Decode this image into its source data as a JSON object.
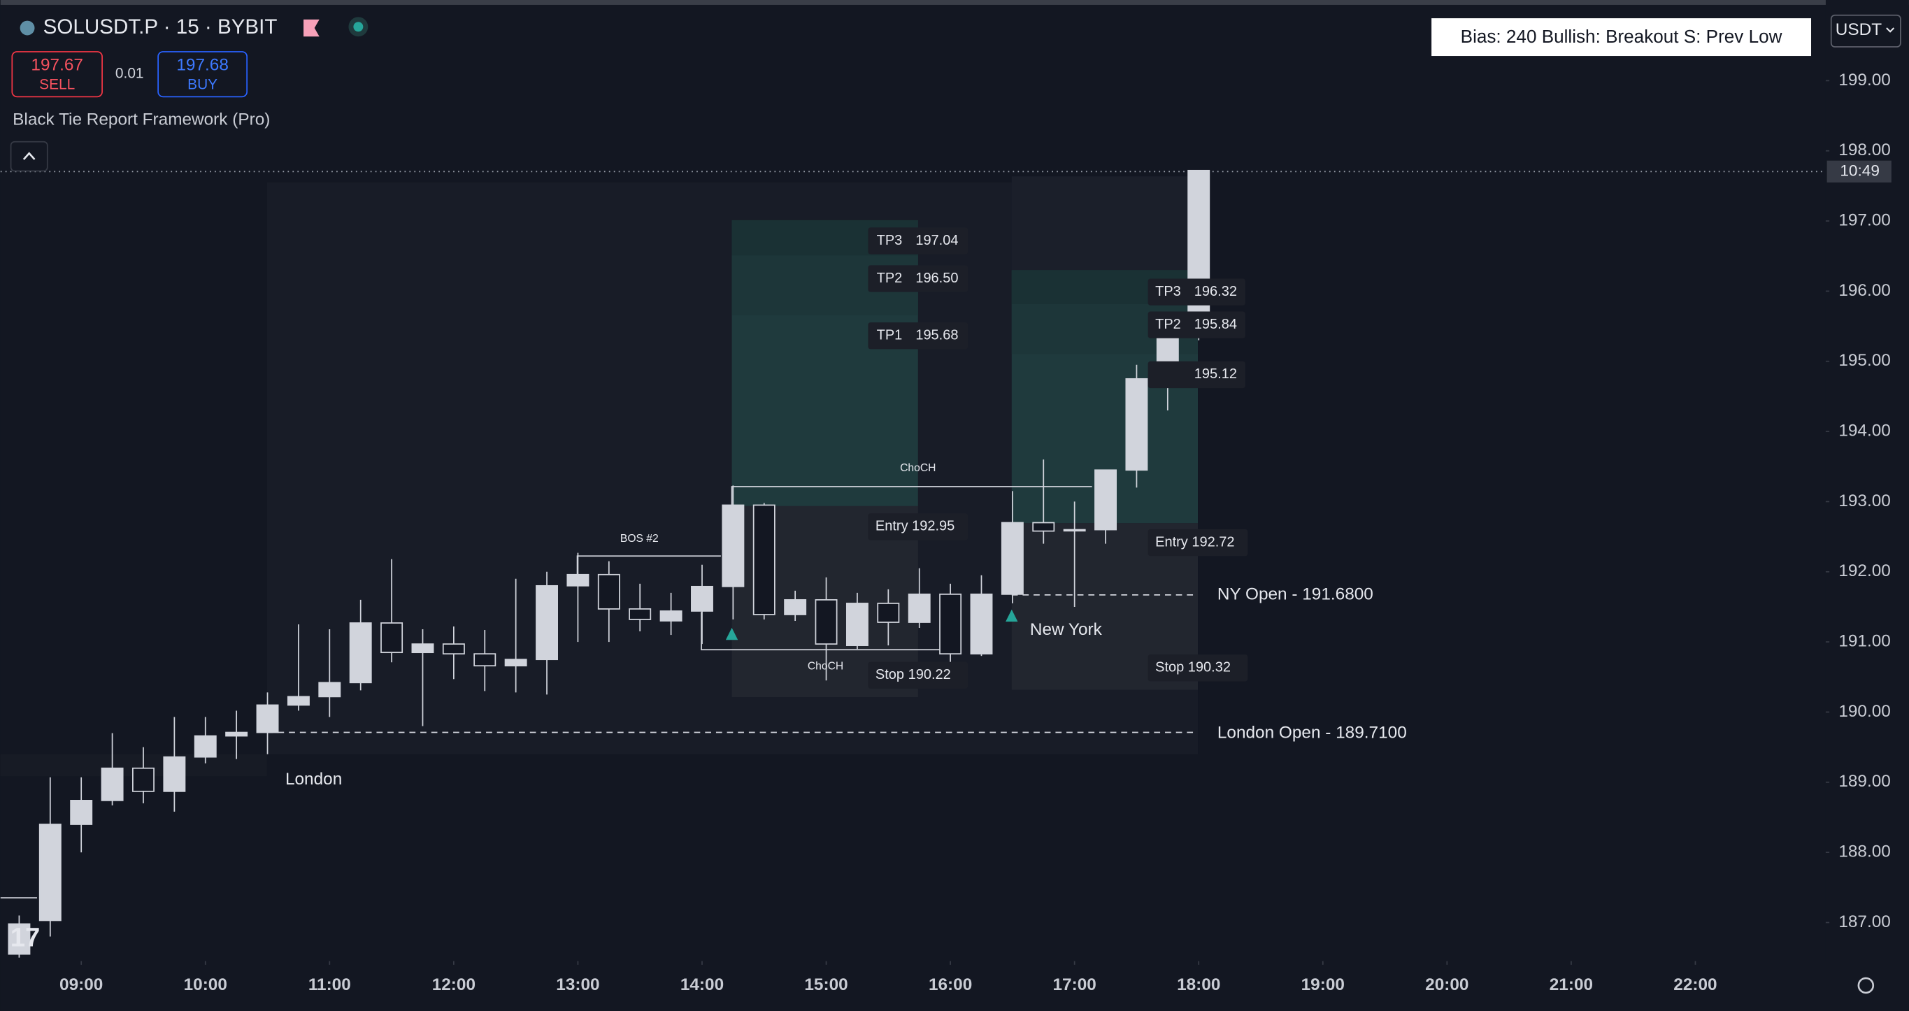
{
  "chart_data": {
    "type": "candlestick",
    "title": "SOLUSDT.P · 15 · BYBIT",
    "x": [
      8.5,
      8.75,
      9,
      9.25,
      9.5,
      9.75,
      10,
      10.25,
      10.5,
      10.75,
      11,
      11.25,
      11.5,
      11.75,
      12,
      12.25,
      12.5,
      12.75,
      13,
      13.25,
      13.5,
      13.75,
      14,
      14.25,
      14.5,
      14.75,
      15,
      15.25,
      15.5,
      15.75,
      16,
      16.25,
      16.5,
      16.75,
      17,
      17.25,
      17.5,
      17.75,
      18
    ],
    "open": [
      186.55,
      187.03,
      188.4,
      188.74,
      189.2,
      188.87,
      189.36,
      189.66,
      189.71,
      190.1,
      190.22,
      190.42,
      191.27,
      190.85,
      190.97,
      190.83,
      190.66,
      190.75,
      191.8,
      191.96,
      191.47,
      191.3,
      191.44,
      191.79,
      192.95,
      191.39,
      191.6,
      190.95,
      191.55,
      191.28,
      191.68,
      190.83,
      191.68,
      192.7,
      192.6,
      192.6,
      193.45,
      194.75,
      195.43
    ],
    "high": [
      187.1,
      189.07,
      189.07,
      189.7,
      189.5,
      189.93,
      189.93,
      190.02,
      190.28,
      191.25,
      191.18,
      191.6,
      192.18,
      191.18,
      191.22,
      191.17,
      191.9,
      192.0,
      192.27,
      192.15,
      191.83,
      191.7,
      192.1,
      193.23,
      192.98,
      191.73,
      191.92,
      191.7,
      191.75,
      192.05,
      191.83,
      191.95,
      193.15,
      193.6,
      193.0,
      193.45,
      194.95,
      195.5,
      197.72
    ],
    "low": [
      186.5,
      186.8,
      188.0,
      188.67,
      188.7,
      188.58,
      189.27,
      189.33,
      189.4,
      190.02,
      189.93,
      190.31,
      190.71,
      189.8,
      190.47,
      190.3,
      190.28,
      190.25,
      191.0,
      191.0,
      191.15,
      191.1,
      190.97,
      191.32,
      191.32,
      191.3,
      190.45,
      190.9,
      190.95,
      191.2,
      190.35,
      190.8,
      191.55,
      192.4,
      191.5,
      192.4,
      193.2,
      194.3,
      195.3
    ],
    "close": [
      186.98,
      188.4,
      188.74,
      189.2,
      188.87,
      189.36,
      189.66,
      189.71,
      190.1,
      190.22,
      190.42,
      191.27,
      190.85,
      190.97,
      190.83,
      190.66,
      190.75,
      191.8,
      191.96,
      191.47,
      191.32,
      191.44,
      191.79,
      192.95,
      191.39,
      191.6,
      190.97,
      191.55,
      191.28,
      191.68,
      190.83,
      191.68,
      192.7,
      192.58,
      192.6,
      193.45,
      194.75,
      195.43,
      197.72
    ],
    "color": "#d1d4dc",
    "xlim": [
      8.35,
      23.05
    ],
    "ylim": [
      186.45,
      200.15
    ],
    "xticks": [
      {
        "value": 9,
        "label": "09:00"
      },
      {
        "value": 10,
        "label": "10:00"
      },
      {
        "value": 11,
        "label": "11:00"
      },
      {
        "value": 12,
        "label": "12:00"
      },
      {
        "value": 13,
        "label": "13:00"
      },
      {
        "value": 14,
        "label": "14:00"
      },
      {
        "value": 15,
        "label": "15:00"
      },
      {
        "value": 16,
        "label": "16:00"
      },
      {
        "value": 17,
        "label": "17:00"
      },
      {
        "value": 18,
        "label": "18:00"
      },
      {
        "value": 19,
        "label": "19:00"
      },
      {
        "value": 20,
        "label": "20:00"
      },
      {
        "value": 21,
        "label": "21:00"
      },
      {
        "value": 22,
        "label": "22:00"
      }
    ],
    "yticks": [
      {
        "value": 187,
        "label": "187.00"
      },
      {
        "value": 188,
        "label": "188.00"
      },
      {
        "value": 189,
        "label": "189.00"
      },
      {
        "value": 190,
        "label": "190.00"
      },
      {
        "value": 191,
        "label": "191.00"
      },
      {
        "value": 192,
        "label": "192.00"
      },
      {
        "value": 193,
        "label": "193.00"
      },
      {
        "value": 194,
        "label": "194.00"
      },
      {
        "value": 195,
        "label": "195.00"
      },
      {
        "value": 196,
        "label": "196.00"
      },
      {
        "value": 197,
        "label": "197.00"
      },
      {
        "value": 198,
        "label": "198.00"
      },
      {
        "value": 199,
        "label": "199.00"
      }
    ],
    "grid": false,
    "countdown": "10:49",
    "annotations": {
      "tp3_a": "TP3",
      "tp3_a_price": "197.04",
      "tp2_a": "TP2",
      "tp2_a_price": "196.50",
      "tp1_a": "TP1",
      "tp1_a_price": "195.68",
      "entry_a": "Entry 192.95",
      "stop_a": "Stop  190.22",
      "tp3_b": "TP3",
      "tp3_b_price": "196.32",
      "tp2_b": "TP2",
      "tp2_b_price": "195.84",
      "tp1_b_price": "195.12",
      "entry_b": "Entry 192.72",
      "stop_b": "Stop  190.32",
      "bos": "BOS #2",
      "choch_top": "ChoCH",
      "choch_bottom": "ChoCH",
      "ny_open": "NY Open - 191.6800",
      "london_open": "London Open - 189.7100",
      "london": "London",
      "new_york": "New York"
    }
  },
  "toolbar": {
    "sell_price": "197.67",
    "sell": "SELL",
    "spread": "0.01",
    "buy_price": "197.68",
    "buy": "BUY",
    "indicator": "Black Tie Report Framework (Pro)",
    "bias": "Bias: 240  Bullish: Breakout  S: Prev Low",
    "currency": "USDT"
  }
}
